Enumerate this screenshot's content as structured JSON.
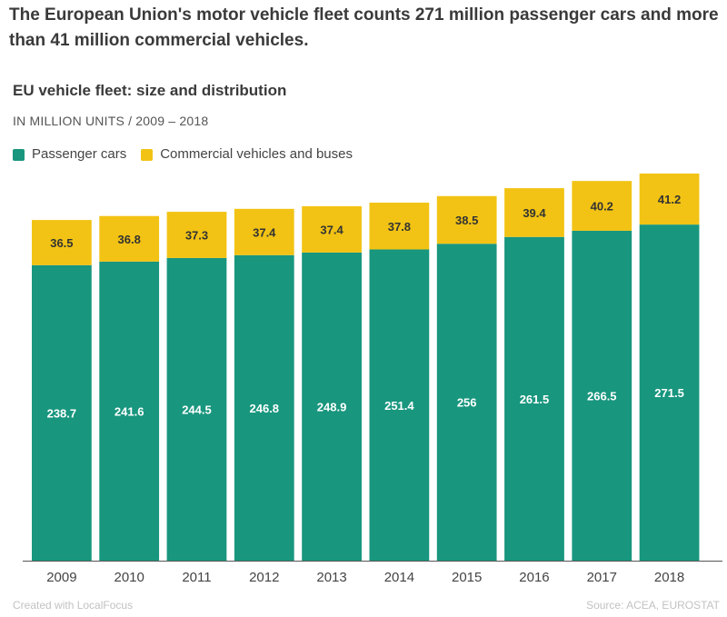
{
  "headline": "The European Union's motor vehicle fleet counts 271 million passenger cars and more than 41 million commercial vehicles.",
  "footer": {
    "credit": "Created with LocalFocus",
    "source": "Source: ACEA, EUROSTAT"
  },
  "colors": {
    "passenger": "#18967e",
    "commercial": "#f2c314"
  },
  "chart_data": {
    "type": "bar",
    "stacked": true,
    "title": "EU vehicle fleet: size and distribution",
    "subtitle": "IN MILLION UNITS / 2009 – 2018",
    "legend_position": "top-left",
    "grid": false,
    "categories": [
      "2009",
      "2010",
      "2011",
      "2012",
      "2013",
      "2014",
      "2015",
      "2016",
      "2017",
      "2018"
    ],
    "series": [
      {
        "name": "Passenger cars",
        "color": "#18967e",
        "values": [
          238.7,
          241.6,
          244.5,
          246.8,
          248.9,
          251.4,
          256,
          261.5,
          266.5,
          271.5
        ]
      },
      {
        "name": "Commercial vehicles and buses",
        "color": "#f2c314",
        "values": [
          36.5,
          36.8,
          37.3,
          37.4,
          37.4,
          37.8,
          38.5,
          39.4,
          40.2,
          41.2
        ]
      }
    ],
    "ylim": [
      0,
      312.7
    ]
  }
}
